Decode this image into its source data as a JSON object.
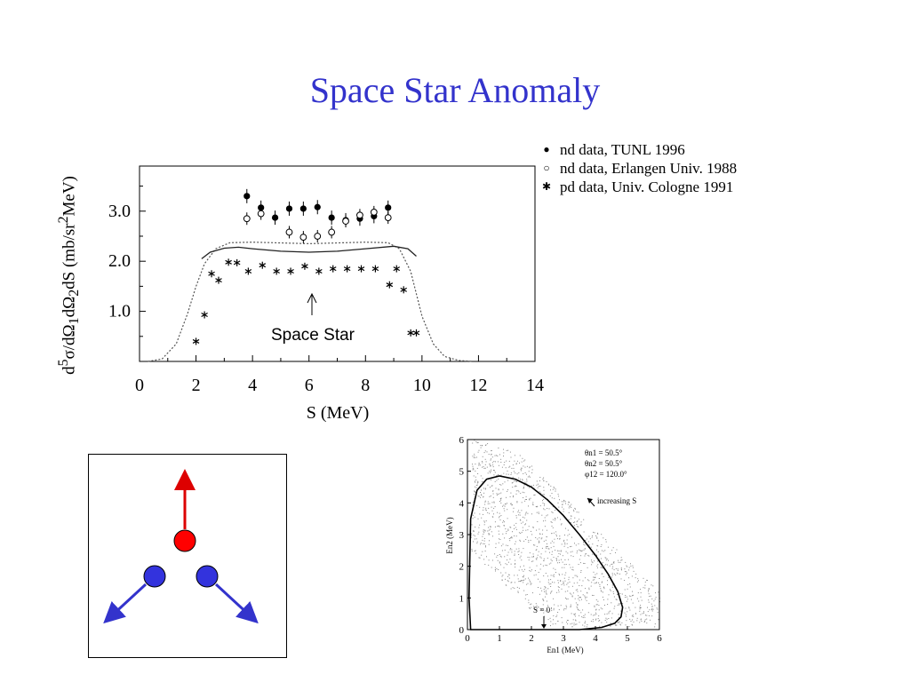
{
  "slide": {
    "title": "Space Star Anomaly"
  },
  "main_plot": {
    "ylabel_html": "d<sup>5</sup>σ/dΩ<sub>1</sub>dΩ<sub>2</sub>dS (mb/sr<sup>2</sup>MeV)",
    "xlabel": "S (MeV)",
    "annotation": "Space Star",
    "x_ticks": [
      "0",
      "2",
      "4",
      "6",
      "8",
      "10",
      "12",
      "14"
    ],
    "y_ticks": [
      "1.0",
      "2.0",
      "3.0"
    ],
    "legend": [
      {
        "symbol": "filled-circle-icon",
        "label": "nd data, TUNL 1996"
      },
      {
        "symbol": "open-circle-icon",
        "label": "nd data, Erlangen Univ. 1988"
      },
      {
        "symbol": "asterisk-icon",
        "label": "pd data, Univ. Cologne 1991"
      }
    ]
  },
  "inset_plot": {
    "params": [
      "θn1 = 50.5°",
      "θn2 = 50.5°",
      "φ12 = 120.0°"
    ],
    "annotation": "increasing S",
    "s0_label": "S = 0",
    "xlabel": "En1 (MeV)",
    "ylabel": "En2 (MeV)",
    "x_ticks": [
      "0",
      "1",
      "2",
      "3",
      "4",
      "5",
      "6"
    ],
    "y_ticks": [
      "0",
      "1",
      "2",
      "3",
      "4",
      "5",
      "6"
    ]
  },
  "chart_data": [
    {
      "type": "scatter",
      "xlabel": "S (MeV)",
      "ylabel": "d5σ/dΩ1dΩ2dS (mb/sr2MeV)",
      "xlim": [
        0,
        14
      ],
      "ylim": [
        0,
        3.9
      ],
      "grid": false,
      "legend_position": "outside-top-right",
      "series": [
        {
          "name": "nd data, TUNL 1996",
          "marker": "filled-circle",
          "x": [
            3.8,
            4.3,
            4.8,
            5.3,
            5.8,
            6.3,
            6.8,
            7.3,
            7.8,
            8.3,
            8.8
          ],
          "y": [
            3.3,
            3.07,
            2.87,
            3.05,
            3.05,
            3.08,
            2.87,
            2.82,
            2.85,
            2.9,
            3.07
          ]
        },
        {
          "name": "nd data, Erlangen Univ. 1988",
          "marker": "open-circle",
          "x": [
            3.8,
            4.3,
            5.3,
            5.8,
            6.3,
            6.8,
            7.3,
            7.8,
            8.3,
            8.8
          ],
          "y": [
            2.85,
            2.95,
            2.58,
            2.48,
            2.5,
            2.58,
            2.8,
            2.92,
            2.98,
            2.87
          ]
        },
        {
          "name": "pd data, Univ. Cologne 1991",
          "marker": "asterisk",
          "x": [
            2.0,
            2.3,
            2.55,
            2.8,
            3.15,
            3.45,
            3.85,
            4.35,
            4.85,
            5.35,
            5.85,
            6.35,
            6.85,
            7.35,
            7.85,
            8.35,
            8.85,
            9.1,
            9.35,
            9.6,
            9.8
          ],
          "y": [
            0.4,
            0.93,
            1.75,
            1.62,
            1.98,
            1.97,
            1.8,
            1.92,
            1.8,
            1.8,
            1.9,
            1.8,
            1.85,
            1.85,
            1.85,
            1.85,
            1.53,
            1.85,
            1.43,
            0.57,
            0.57
          ]
        },
        {
          "name": "",
          "line": "solid",
          "x": [
            2.2,
            2.5,
            3.0,
            3.5,
            4.0,
            5.0,
            6.0,
            7.0,
            8.0,
            9.0,
            9.5,
            9.8
          ],
          "y": [
            2.05,
            2.18,
            2.26,
            2.28,
            2.25,
            2.2,
            2.18,
            2.2,
            2.25,
            2.3,
            2.25,
            2.1
          ]
        },
        {
          "name": "",
          "line": "dotted",
          "x": [
            0.3,
            0.8,
            1.3,
            1.7,
            2.0,
            2.3,
            2.7,
            3.2,
            4.0,
            6.0,
            8.0,
            8.8,
            9.2,
            9.6,
            10.0,
            10.4,
            10.8,
            11.3,
            11.8
          ],
          "y": [
            0.0,
            0.05,
            0.35,
            0.95,
            1.5,
            1.95,
            2.25,
            2.37,
            2.38,
            2.35,
            2.38,
            2.37,
            2.25,
            1.8,
            0.9,
            0.35,
            0.1,
            0.02,
            0.0
          ]
        }
      ]
    },
    {
      "type": "scatter",
      "xlabel": "En1 (MeV)",
      "ylabel": "En2 (MeV)",
      "xlim": [
        0,
        6
      ],
      "ylim": [
        0,
        6
      ],
      "series": [
        {
          "name": "",
          "line": "solid",
          "x": [
            0.1,
            0.05,
            0.1,
            0.3,
            0.6,
            1.0,
            1.5,
            2.0,
            2.5,
            3.0,
            3.5,
            4.0,
            4.4,
            4.7,
            4.85,
            4.8,
            4.6,
            4.2,
            3.5,
            2.5,
            1.5,
            0.8,
            0.3,
            0.1
          ],
          "y": [
            0.0,
            1.0,
            3.5,
            4.4,
            4.75,
            4.85,
            4.75,
            4.5,
            4.1,
            3.6,
            3.0,
            2.35,
            1.75,
            1.2,
            0.7,
            0.4,
            0.2,
            0.07,
            0.0,
            0.0,
            0.0,
            0.0,
            0.0,
            0.0
          ]
        }
      ]
    }
  ]
}
